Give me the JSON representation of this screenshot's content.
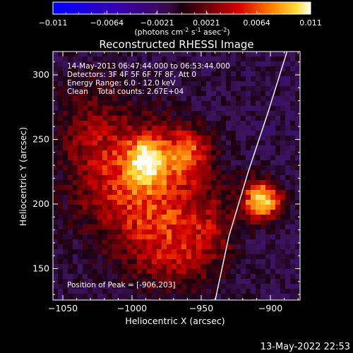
{
  "chart_data": {
    "type": "heatmap",
    "title": "Reconstructed RHESSI Image",
    "xlabel": "Heliocentric X (arcsec)",
    "ylabel": "Heliocentric Y (arcsec)",
    "xlim": [
      -1064,
      -1005
    ],
    "ylim": [
      125,
      318
    ],
    "xticks": [
      -1050,
      -1000,
      -950,
      -900
    ],
    "yticks": [
      150,
      200,
      250,
      300
    ],
    "colorbar": {
      "min": -0.011,
      "max": 0.011,
      "ticks": [
        "-0.011",
        "-0.0064",
        "-0.0021",
        "0.0021",
        "0.0064",
        "0.011"
      ],
      "label_main": "(photons cm",
      "label_exp1": "-2",
      "label_mid": " s",
      "label_exp2": "-1",
      "label_mid2": " asec",
      "label_exp3": "-2",
      "label_end": ")"
    },
    "annotations": [
      "14-May-2013 06:47:44.000 to 06:53:44.000",
      "Detectors: 3F 4F 5F 6F 7F 8F, Att 0",
      "Energy Range: 6.0 - 12.0 keV",
      "Clean    Total counts: 2.67E+04"
    ],
    "peak_label": "Position of Peak = [-906,203]",
    "peak": [
      -906,
      203
    ],
    "sources": [
      {
        "x": -906,
        "y": 203,
        "sx": 10,
        "sy": 11,
        "amp": 0.011
      },
      {
        "x": -990,
        "y": 235,
        "sx": 9,
        "sy": 12,
        "amp": 0.0072
      },
      {
        "x": -960,
        "y": 240,
        "sx": 12,
        "sy": 14,
        "amp": 0.0052
      },
      {
        "x": -1005,
        "y": 215,
        "sx": 28,
        "sy": 35,
        "amp": 0.0048
      },
      {
        "x": -975,
        "y": 200,
        "sx": 25,
        "sy": 40,
        "amp": 0.004
      },
      {
        "x": -1030,
        "y": 260,
        "sx": 18,
        "sy": 30,
        "amp": 0.003
      },
      {
        "x": -965,
        "y": 160,
        "sx": 22,
        "sy": 20,
        "amp": 0.003
      },
      {
        "x": -940,
        "y": 185,
        "sx": 12,
        "sy": 18,
        "amp": 0.0025
      }
    ],
    "limb": [
      [
        -940,
        125
      ],
      [
        -930,
        175
      ],
      [
        -916,
        225
      ],
      [
        -902,
        270
      ],
      [
        -888,
        318
      ]
    ]
  },
  "footer": {
    "timestamp": "13-May-2022 22:53"
  }
}
